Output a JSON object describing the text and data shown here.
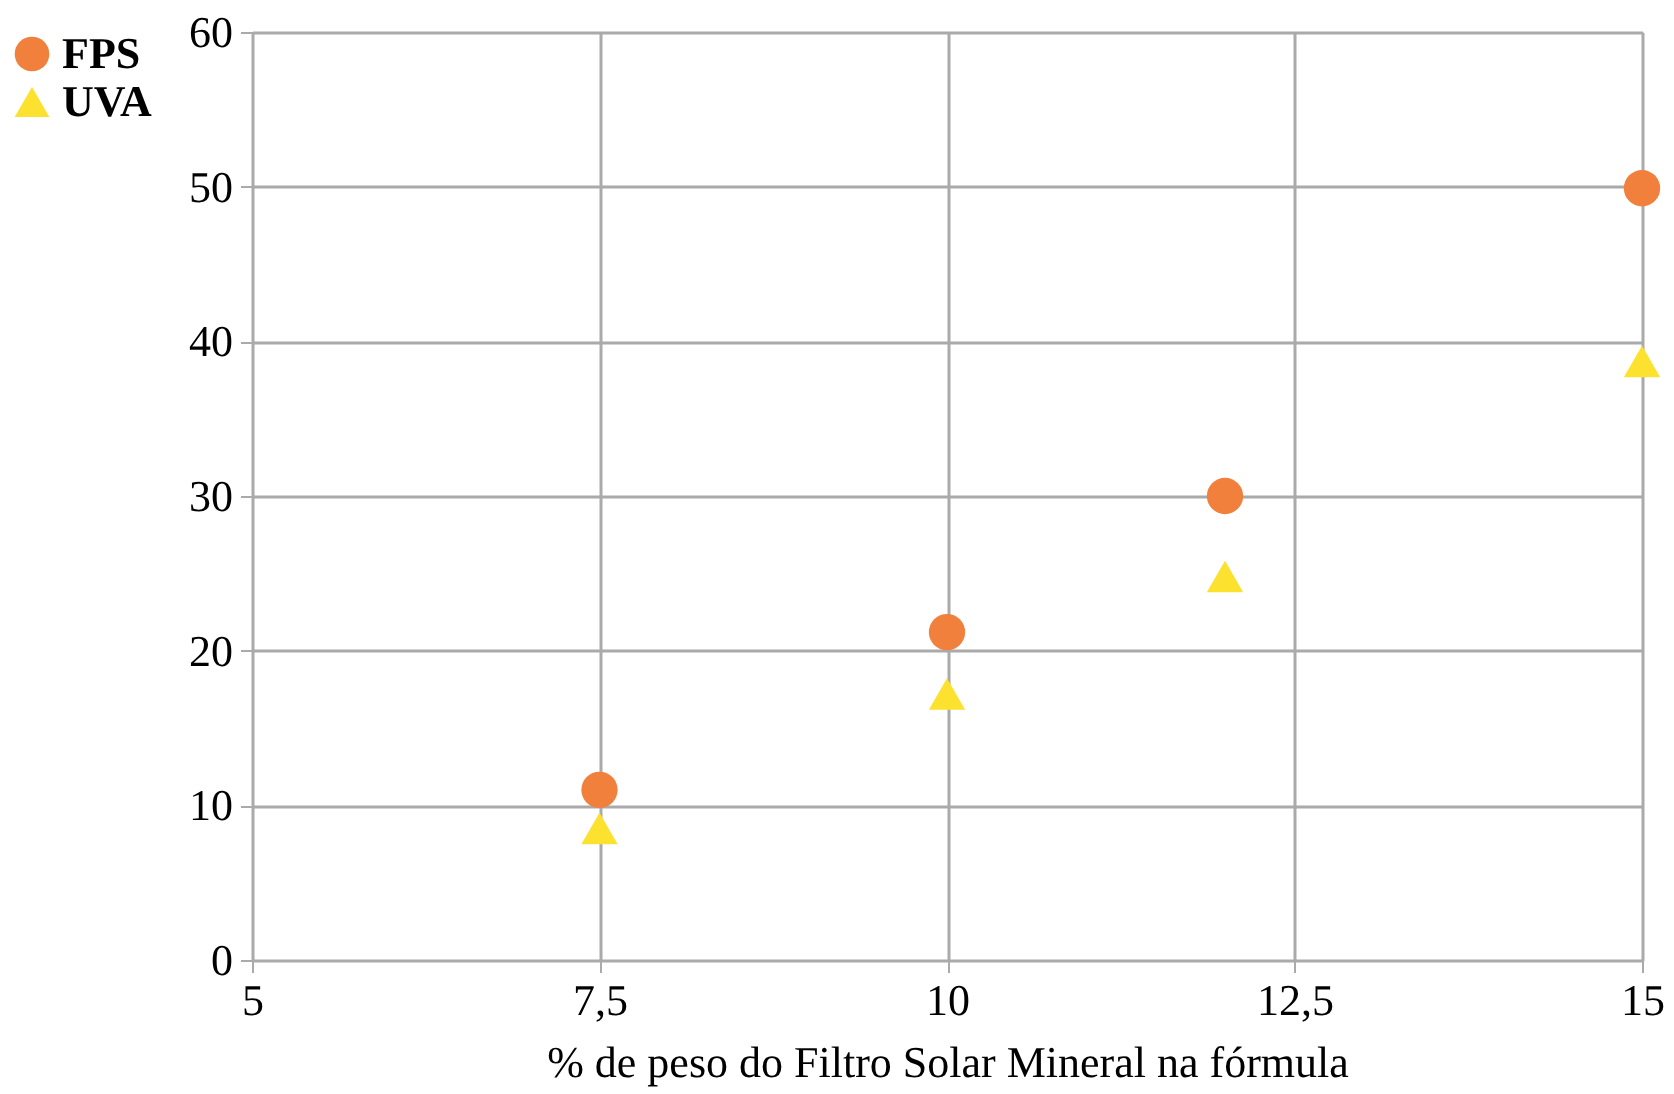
{
  "chart_data": {
    "type": "scatter",
    "xlabel": "% de peso do Filtro Solar Mineral na fórmula",
    "x": [
      7.5,
      10,
      12,
      15
    ],
    "series": [
      {
        "name": "FPS",
        "color": "#f0803c",
        "marker": "circle",
        "values": [
          11,
          21.2,
          30,
          49.9
        ]
      },
      {
        "name": "UVA",
        "color": "#fce12e",
        "marker": "triangle",
        "values": [
          8.5,
          17.2,
          24.8,
          38.7
        ]
      }
    ],
    "xlim": [
      5,
      15
    ],
    "xticks": [
      5,
      {
        "value": 7.5,
        "label": "7,5"
      },
      10,
      {
        "value": 12.5,
        "label": "12,5"
      },
      15
    ],
    "ylim": [
      0,
      60
    ],
    "yticks": [
      0,
      10,
      20,
      30,
      40,
      50,
      60
    ],
    "grid": true,
    "legend": "top left"
  }
}
